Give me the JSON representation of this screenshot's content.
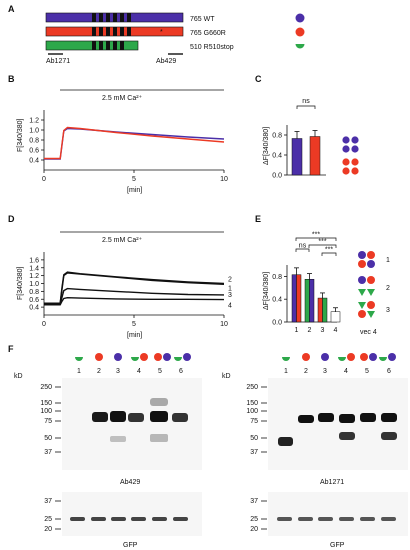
{
  "colors": {
    "wt": "#4b2fa8",
    "g660r": "#ec3a24",
    "r510": "#2da84a",
    "black": "#111111",
    "blot_bg": "#f6f6f6"
  },
  "panel_labels": [
    "A",
    "B",
    "C",
    "D",
    "E",
    "F"
  ],
  "panelA": {
    "constructs": [
      {
        "size": "765",
        "name": "WT",
        "color": "#4b2fa8",
        "symbol": "full-circle"
      },
      {
        "size": "765",
        "name": "G660R",
        "color": "#ec3a24",
        "symbol": "full-circle",
        "has_star": true
      },
      {
        "size": "510",
        "name": "R510stop",
        "color": "#2da84a",
        "symbol": "half-circle"
      }
    ],
    "antibodies": [
      "Ab1271",
      "Ab429"
    ],
    "star": "*"
  },
  "panelB": {
    "annotation": "2.5 mM Ca²⁺",
    "xlabel": "[min]",
    "ylabel": "F[340/380]",
    "xticks": [
      "0",
      "5",
      "10"
    ],
    "yticks": [
      "0.4",
      "0.6",
      "0.8",
      "1.0",
      "1.2"
    ]
  },
  "panelC": {
    "ylabel": "ΔF[340/380]",
    "yticks": [
      "0.0",
      "0.4",
      "0.8"
    ],
    "sig": "ns"
  },
  "panelD": {
    "annotation": "2.5 mM Ca²⁺",
    "xlabel": "[min]",
    "ylabel": "F[340/380]",
    "xticks": [
      "0",
      "5",
      "10"
    ],
    "yticks": [
      "0.4",
      "0.6",
      "0.8",
      "1.0",
      "1.2",
      "1.4",
      "1.6"
    ],
    "trace_labels": [
      "2",
      "1",
      "3",
      "4"
    ]
  },
  "panelE": {
    "ylabel": "ΔF[340/380]",
    "yticks": [
      "0.0",
      "0.4",
      "0.8"
    ],
    "xticks": [
      "1",
      "2",
      "3",
      "4"
    ],
    "sig": [
      "ns",
      "***",
      "***",
      "***"
    ],
    "legend_labels": [
      "1",
      "2",
      "3",
      "vec  4"
    ]
  },
  "panelF": {
    "kd_label": "kD",
    "lanes": [
      "1",
      "2",
      "3",
      "4",
      "5",
      "6"
    ],
    "mw_top": [
      "250",
      "150",
      "100",
      "75",
      "50",
      "37"
    ],
    "mw_bottom": [
      "37",
      "25",
      "20"
    ],
    "left_blot": "Ab429",
    "right_blot": "Ab1271",
    "loading": "GFP"
  },
  "chart_data": [
    {
      "type": "line",
      "panel": "B",
      "xlabel": "[min]",
      "ylabel": "F[340/380]",
      "xlim": [
        0,
        10
      ],
      "ylim": [
        0.2,
        1.4
      ],
      "annotation": "2.5 mM Ca²⁺",
      "x": [
        0,
        0.9,
        1.0,
        1.1,
        1.3,
        2,
        4,
        6,
        8,
        10
      ],
      "series": [
        {
          "color": "#4b2fa8",
          "values": [
            0.42,
            0.42,
            0.7,
            0.98,
            1.03,
            1.02,
            0.96,
            0.91,
            0.86,
            0.82
          ]
        },
        {
          "color": "#ec3a24",
          "values": [
            0.43,
            0.43,
            0.72,
            0.99,
            1.05,
            1.03,
            0.95,
            0.88,
            0.82,
            0.76
          ]
        }
      ]
    },
    {
      "type": "bar",
      "panel": "C",
      "ylabel": "ΔF[340/380]",
      "ylim": [
        0,
        1.0
      ],
      "categories": [
        "WT",
        "G660R"
      ],
      "values": [
        0.73,
        0.77
      ],
      "errors": [
        0.14,
        0.12
      ],
      "colors": [
        "#4b2fa8",
        "#ec3a24"
      ],
      "annotation": "ns"
    },
    {
      "type": "line",
      "panel": "D",
      "xlabel": "[min]",
      "ylabel": "F[340/380]",
      "xlim": [
        0,
        10
      ],
      "ylim": [
        0.2,
        1.8
      ],
      "annotation": "2.5 mM Ca²⁺",
      "x": [
        0,
        0.9,
        1.0,
        1.1,
        1.3,
        2,
        4,
        6,
        8,
        10
      ],
      "series": [
        {
          "name": "2",
          "values": [
            0.5,
            0.5,
            0.9,
            1.22,
            1.29,
            1.25,
            1.17,
            1.1,
            1.04,
            1.0
          ]
        },
        {
          "name": "1",
          "values": [
            0.5,
            0.5,
            0.85,
            1.2,
            1.27,
            1.24,
            1.16,
            1.08,
            1.02,
            0.98
          ]
        },
        {
          "name": "3",
          "values": [
            0.48,
            0.48,
            0.65,
            0.82,
            0.87,
            0.85,
            0.8,
            0.75,
            0.72,
            0.71
          ]
        },
        {
          "name": "4",
          "values": [
            0.46,
            0.46,
            0.55,
            0.62,
            0.64,
            0.63,
            0.61,
            0.6,
            0.6,
            0.59
          ]
        }
      ]
    },
    {
      "type": "bar",
      "panel": "E",
      "ylabel": "ΔF[340/380]",
      "ylim": [
        0,
        1.0
      ],
      "categories": [
        "1",
        "2",
        "3",
        "4"
      ],
      "values": [
        0.83,
        0.75,
        0.42,
        0.18
      ],
      "errors": [
        0.12,
        0.1,
        0.09,
        0.07
      ],
      "annotations": [
        "ns",
        "***",
        "***",
        "***"
      ]
    }
  ]
}
